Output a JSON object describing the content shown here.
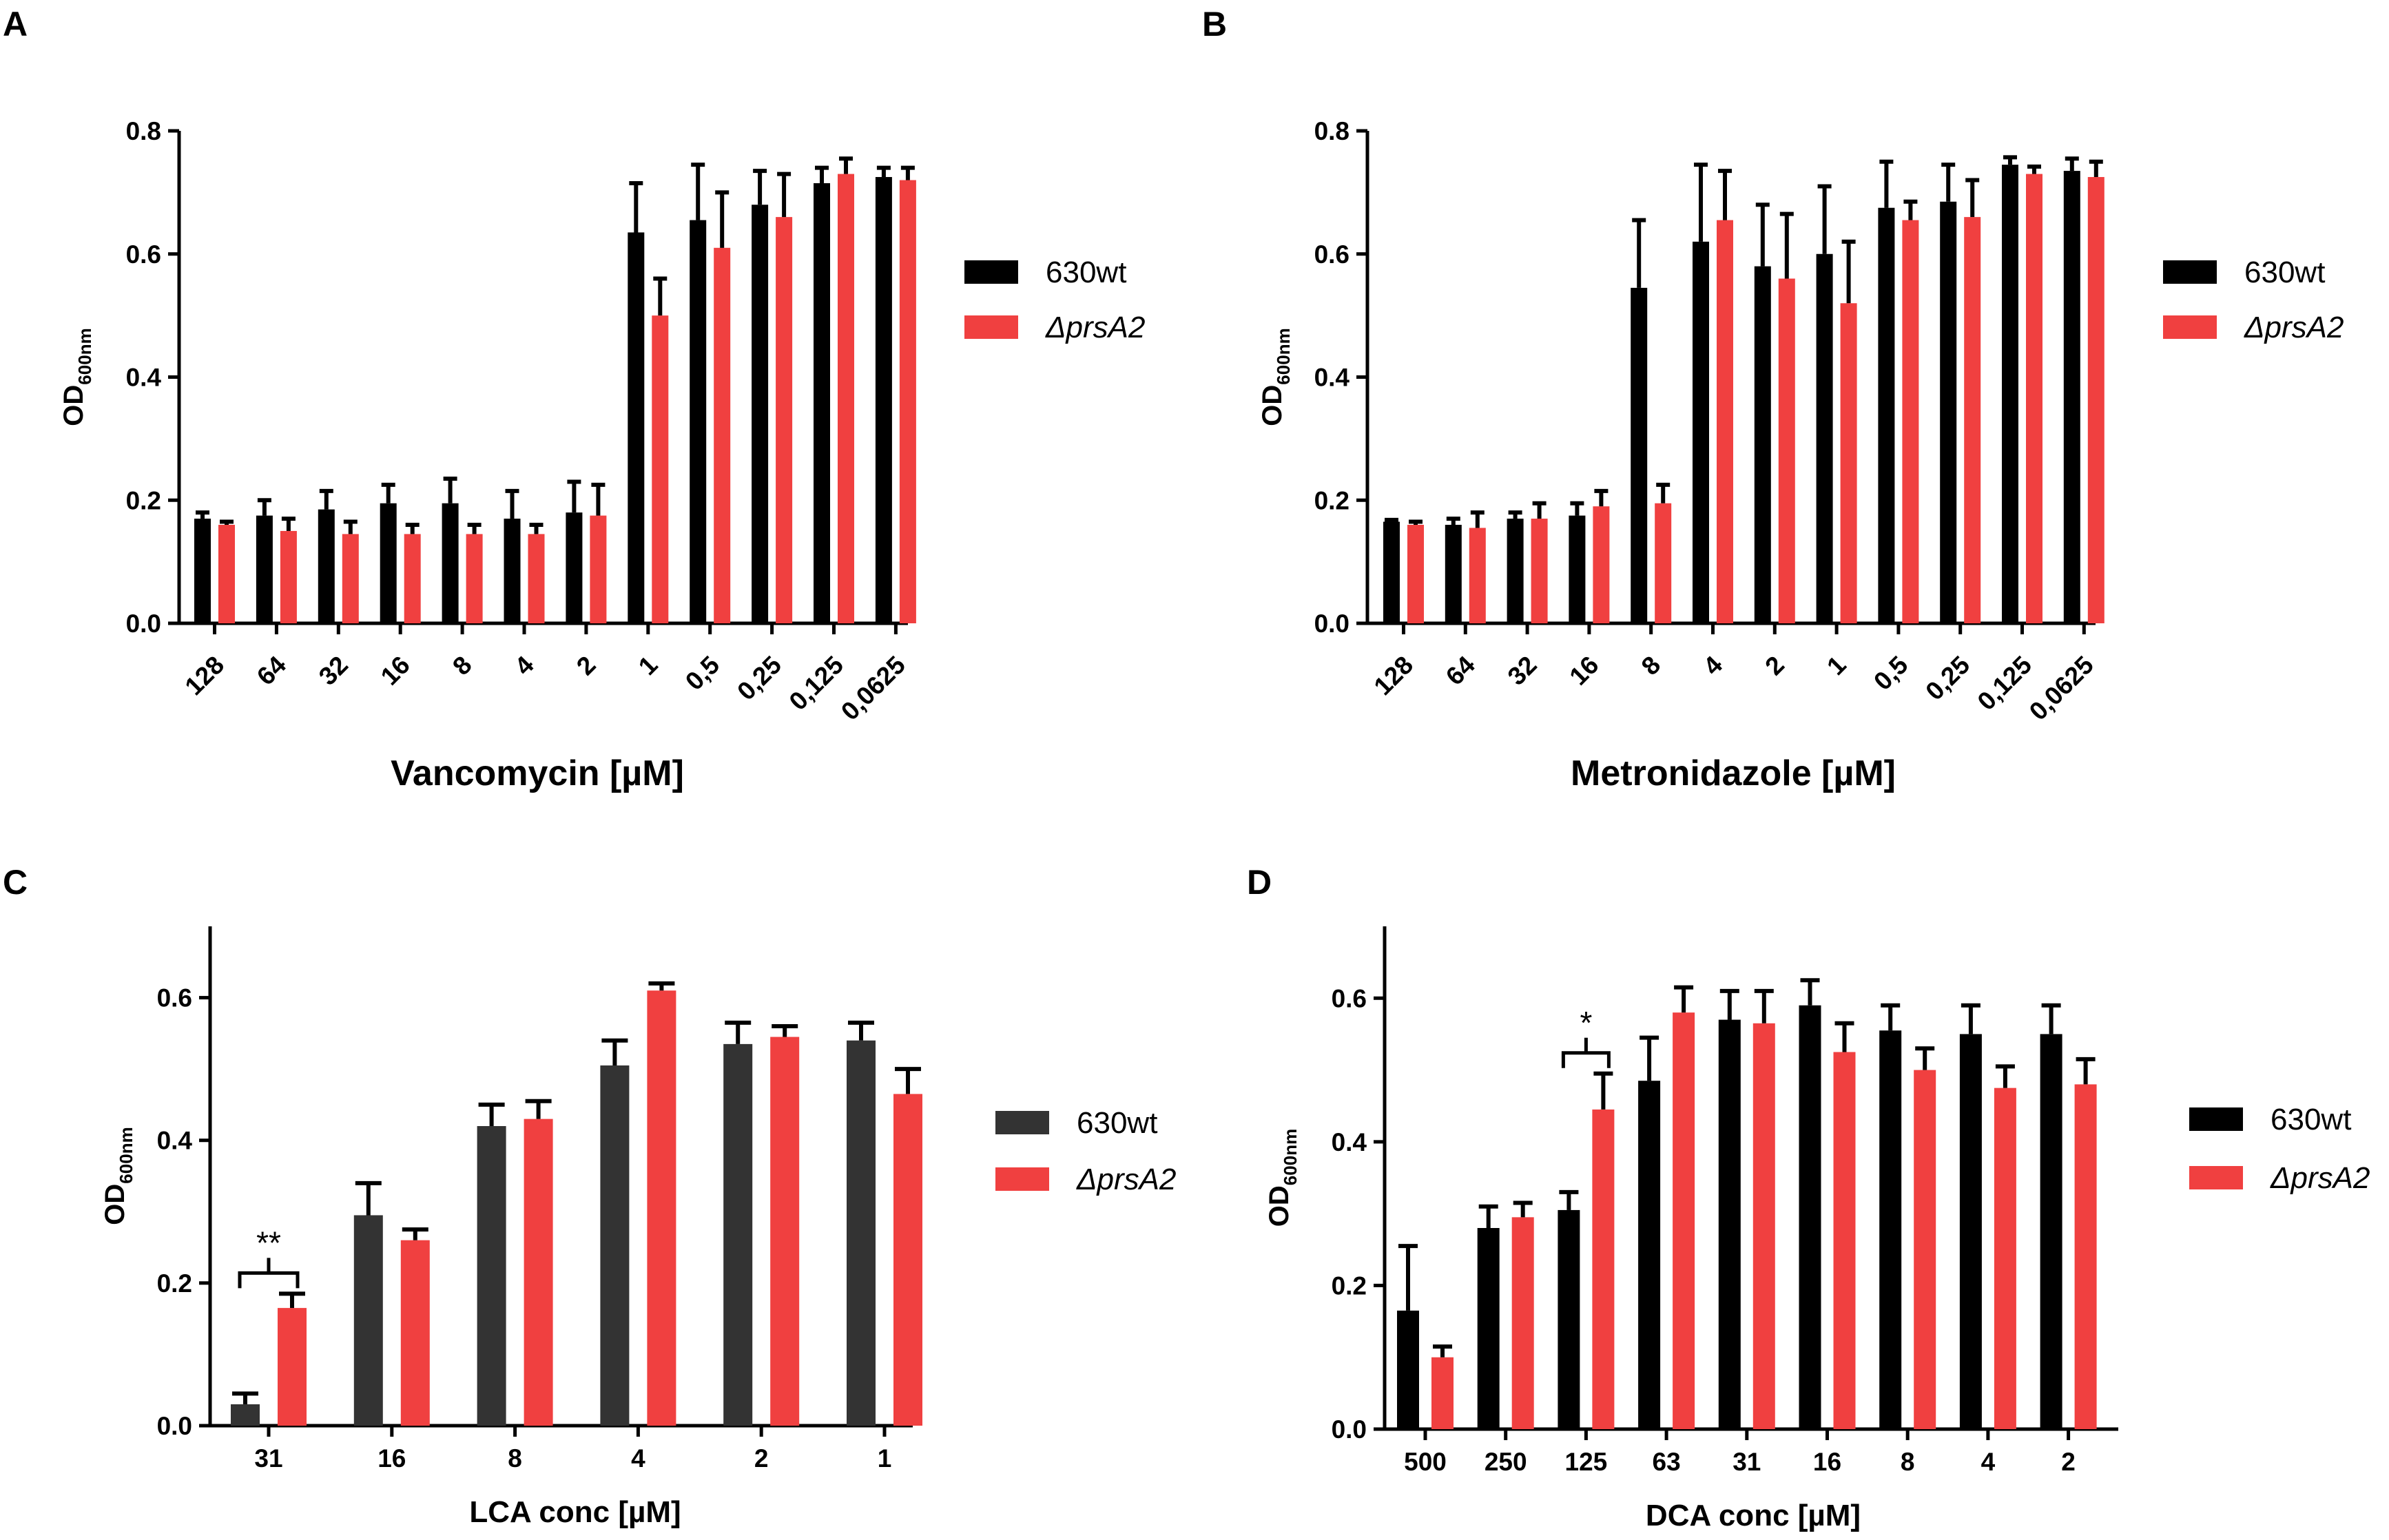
{
  "chart_data": [
    {
      "panel": "A",
      "type": "bar",
      "xlabel": "Vancomycin [µM]",
      "ylabel": "OD",
      "ylabel_sub": "600nm",
      "ylim": [
        0,
        0.8
      ],
      "yticks": [
        "0.0",
        "0.2",
        "0.4",
        "0.6",
        "0.8"
      ],
      "categories": [
        "128",
        "64",
        "32",
        "16",
        "8",
        "4",
        "2",
        "1",
        "0,5",
        "0,25",
        "0,125",
        "0,0625"
      ],
      "series": [
        {
          "name": "630wt",
          "color": "#000000",
          "values": [
            0.17,
            0.175,
            0.185,
            0.195,
            0.195,
            0.17,
            0.18,
            0.635,
            0.655,
            0.68,
            0.715,
            0.725
          ],
          "errors": [
            0.01,
            0.025,
            0.03,
            0.03,
            0.04,
            0.045,
            0.05,
            0.08,
            0.09,
            0.055,
            0.025,
            0.015
          ]
        },
        {
          "name": "ΔprsA2",
          "color": "#f04040",
          "values": [
            0.16,
            0.15,
            0.145,
            0.145,
            0.145,
            0.145,
            0.175,
            0.5,
            0.61,
            0.66,
            0.73,
            0.72
          ],
          "errors": [
            0.005,
            0.02,
            0.02,
            0.015,
            0.015,
            0.015,
            0.05,
            0.06,
            0.09,
            0.07,
            0.025,
            0.02
          ]
        }
      ],
      "legend": [
        "630wt",
        "ΔprsA2"
      ],
      "annotations": []
    },
    {
      "panel": "B",
      "type": "bar",
      "xlabel": "Metronidazole [µM]",
      "ylabel": "OD",
      "ylabel_sub": "600nm",
      "ylim": [
        0,
        0.8
      ],
      "yticks": [
        "0.0",
        "0.2",
        "0.4",
        "0.6",
        "0.8"
      ],
      "categories": [
        "128",
        "64",
        "32",
        "16",
        "8",
        "4",
        "2",
        "1",
        "0,5",
        "0,25",
        "0,125",
        "0,0625"
      ],
      "series": [
        {
          "name": "630wt",
          "color": "#000000",
          "values": [
            0.165,
            0.16,
            0.17,
            0.175,
            0.545,
            0.62,
            0.58,
            0.6,
            0.675,
            0.685,
            0.745,
            0.735
          ],
          "errors": [
            0.003,
            0.01,
            0.01,
            0.02,
            0.11,
            0.125,
            0.1,
            0.11,
            0.075,
            0.06,
            0.012,
            0.02
          ]
        },
        {
          "name": "ΔprsA2",
          "color": "#f04040",
          "values": [
            0.16,
            0.155,
            0.17,
            0.19,
            0.195,
            0.655,
            0.56,
            0.52,
            0.655,
            0.66,
            0.73,
            0.725
          ],
          "errors": [
            0.005,
            0.025,
            0.025,
            0.025,
            0.03,
            0.08,
            0.105,
            0.1,
            0.03,
            0.06,
            0.012,
            0.025
          ]
        }
      ],
      "legend": [
        "630wt",
        "ΔprsA2"
      ],
      "annotations": []
    },
    {
      "panel": "C",
      "type": "bar",
      "xlabel": "LCA conc [µM]",
      "ylabel": "OD",
      "ylabel_sub": "600nm",
      "ylim": [
        0,
        0.7
      ],
      "yticks": [
        "0.0",
        "0.2",
        "0.4",
        "0.6"
      ],
      "categories": [
        "31",
        "16",
        "8",
        "4",
        "2",
        "1"
      ],
      "series": [
        {
          "name": "630wt",
          "color": "#333333",
          "values": [
            0.03,
            0.295,
            0.42,
            0.505,
            0.535,
            0.54
          ],
          "errors": [
            0.015,
            0.045,
            0.03,
            0.035,
            0.03,
            0.025
          ]
        },
        {
          "name": "ΔprsA2",
          "color": "#f04040",
          "values": [
            0.165,
            0.26,
            0.43,
            0.61,
            0.545,
            0.465
          ],
          "errors": [
            0.02,
            0.015,
            0.025,
            0.01,
            0.015,
            0.035
          ]
        }
      ],
      "legend": [
        "630wt",
        "ΔprsA2"
      ],
      "annotations": [
        {
          "text": "**",
          "category": "31"
        }
      ]
    },
    {
      "panel": "D",
      "type": "bar",
      "xlabel": "DCA conc [µM]",
      "ylabel": "OD",
      "ylabel_sub": "600nm",
      "ylim": [
        0,
        0.7
      ],
      "yticks": [
        "0.0",
        "0.2",
        "0.4",
        "0.6"
      ],
      "categories": [
        "500",
        "250",
        "125",
        "63",
        "31",
        "16",
        "8",
        "4",
        "2"
      ],
      "series": [
        {
          "name": "630wt",
          "color": "#000000",
          "values": [
            0.165,
            0.28,
            0.305,
            0.485,
            0.57,
            0.59,
            0.555,
            0.55,
            0.55
          ],
          "errors": [
            0.09,
            0.03,
            0.025,
            0.06,
            0.04,
            0.035,
            0.035,
            0.04,
            0.04
          ]
        },
        {
          "name": "ΔprsA2",
          "color": "#f04040",
          "values": [
            0.1,
            0.295,
            0.445,
            0.58,
            0.565,
            0.525,
            0.5,
            0.475,
            0.48
          ],
          "errors": [
            0.015,
            0.02,
            0.05,
            0.035,
            0.045,
            0.04,
            0.03,
            0.03,
            0.035
          ]
        }
      ],
      "legend": [
        "630wt",
        "ΔprsA2"
      ],
      "annotations": [
        {
          "text": "*",
          "category": "125"
        }
      ]
    }
  ]
}
